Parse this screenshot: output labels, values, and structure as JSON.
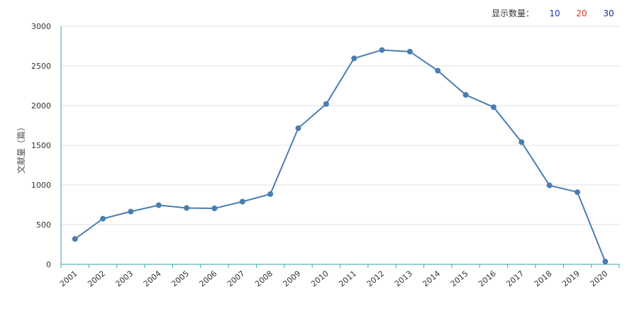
{
  "count_selector": {
    "label": "显示数量：",
    "options": [
      {
        "label": "10",
        "color": "#1d33c4"
      },
      {
        "label": "20",
        "color": "#e0301e"
      },
      {
        "label": "30",
        "color": "#1d2a8c"
      }
    ]
  },
  "chart_data": {
    "type": "line",
    "title": "",
    "xlabel": "",
    "ylabel": "文献量（篇）",
    "categories": [
      "2001",
      "2002",
      "2003",
      "2004",
      "2005",
      "2006",
      "2007",
      "2008",
      "2009",
      "2010",
      "2011",
      "2012",
      "2013",
      "2014",
      "2015",
      "2016",
      "2017",
      "2018",
      "2019",
      "2020"
    ],
    "series": [
      {
        "values": [
          320,
          575,
          665,
          745,
          710,
          705,
          790,
          885,
          1715,
          2020,
          2595,
          2700,
          2680,
          2440,
          2135,
          1980,
          1540,
          995,
          910,
          35
        ]
      }
    ],
    "ylim": [
      0,
      3000
    ],
    "yticks": [
      0,
      500,
      1000,
      1500,
      2000,
      2500,
      3000
    ],
    "grid": true,
    "line_color": "#4a7eb0",
    "axis_color": "#3aa6a8"
  }
}
